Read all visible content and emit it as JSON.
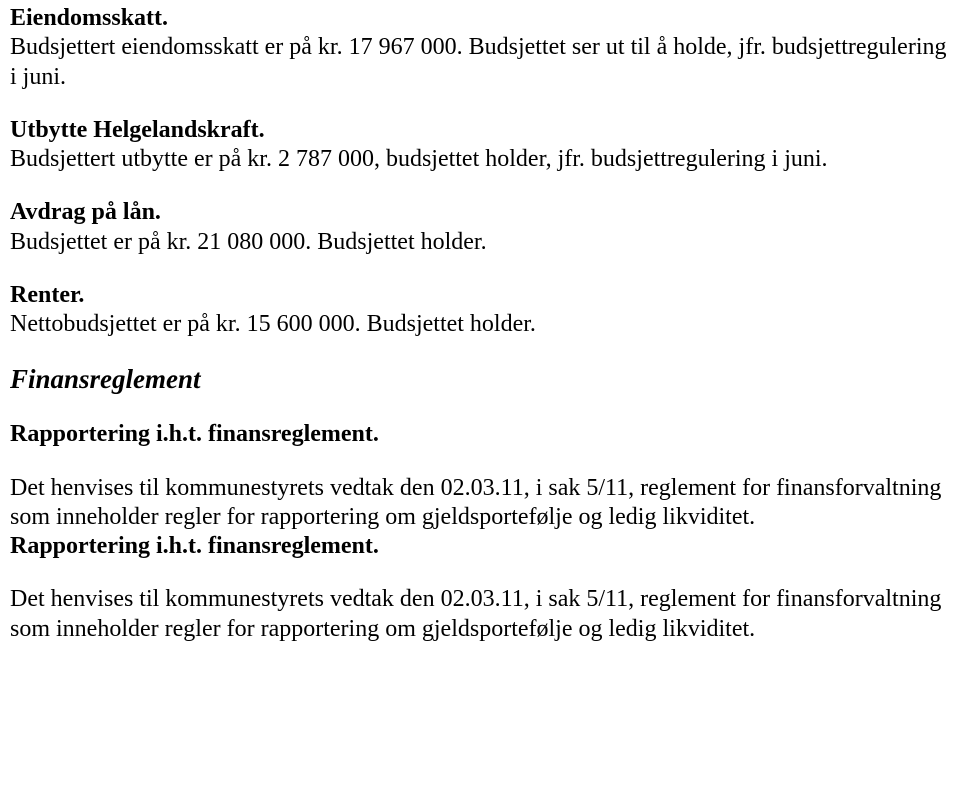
{
  "section1": {
    "heading": "Eiendomsskatt.",
    "body": "Budsjettert eiendomsskatt er på kr. 17 967 000. Budsjettet ser ut til å holde, jfr. budsjettregulering i juni."
  },
  "section2": {
    "heading": "Utbytte Helgelandskraft.",
    "body": "Budsjettert utbytte er på kr. 2 787 000, budsjettet holder, jfr. budsjettregulering i juni."
  },
  "section3": {
    "heading": "Avdrag på lån.",
    "body": "Budsjettet er på kr. 21 080 000. Budsjettet holder."
  },
  "section4": {
    "heading": "Renter.",
    "body": "Nettobudsjettet er på kr. 15 600 000. Budsjettet holder."
  },
  "majorHeading": "Finansreglement",
  "section5": {
    "heading": "Rapportering i.h.t. finansreglement.",
    "body": "Det henvises til kommunestyrets vedtak den 02.03.11, i sak 5/11, reglement for finansforvaltning som inneholder regler for rapportering om gjeldsportefølje og ledig likviditet."
  },
  "section6": {
    "heading": "Rapportering i.h.t. finansreglement.",
    "body": "Det henvises til kommunestyrets vedtak den 02.03.11, i sak 5/11, reglement for finansforvaltning som inneholder regler for rapportering om gjeldsportefølje og ledig likviditet."
  }
}
